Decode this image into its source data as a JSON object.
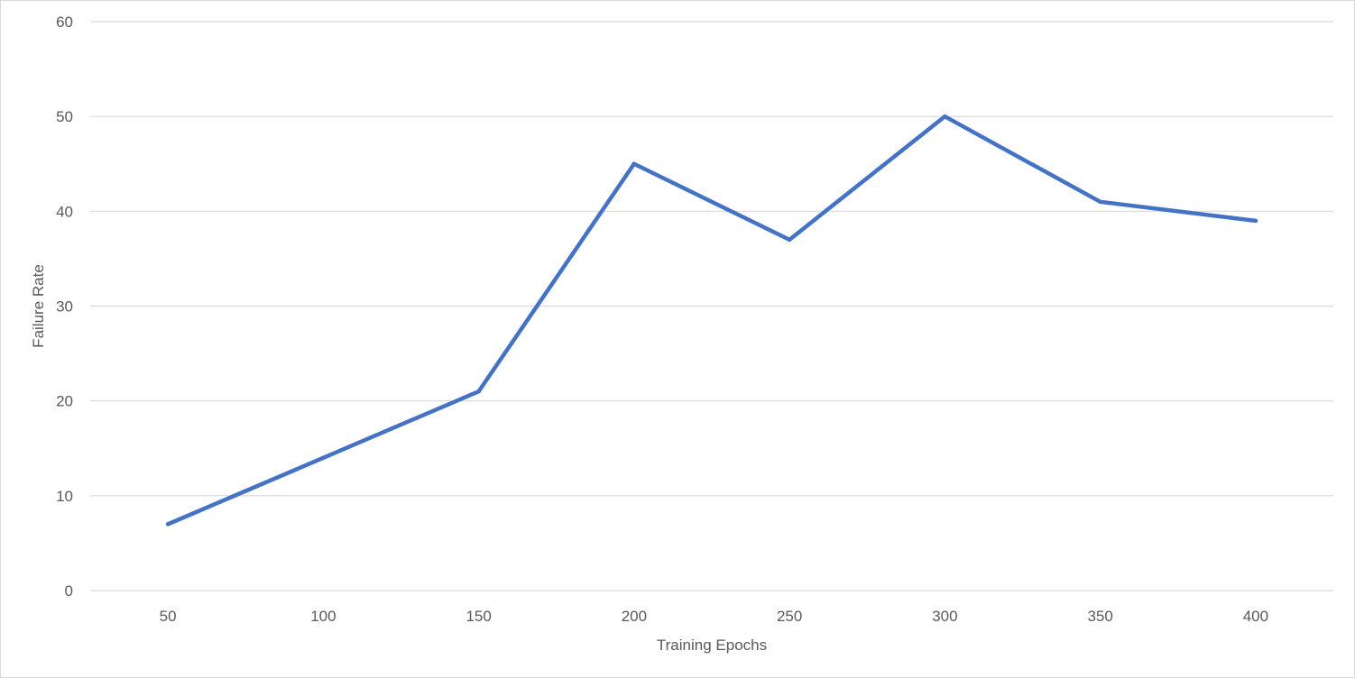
{
  "chart_data": {
    "type": "line",
    "title": "",
    "xlabel": "Training Epochs",
    "ylabel": "Failure Rate",
    "categories": [
      "50",
      "100",
      "150",
      "200",
      "250",
      "300",
      "350",
      "400"
    ],
    "series": [
      {
        "name": "Failure Rate",
        "values": [
          7,
          14,
          21,
          45,
          37,
          50,
          41,
          39
        ],
        "color": "#4472c4"
      }
    ],
    "ylim": [
      0,
      60
    ],
    "yticks": [
      "0",
      "10",
      "20",
      "30",
      "40",
      "50",
      "60"
    ],
    "grid": true,
    "legend": "none"
  }
}
